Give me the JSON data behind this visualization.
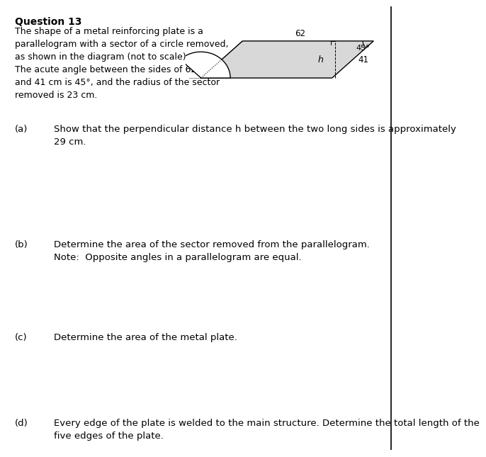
{
  "title": "Question 13",
  "intro_text": "The shape of a metal reinforcing plate is a\nparallelogram with a sector of a circle removed,\nas shown in the diagram (not to scale).\nThe acute angle between the sides of 62 cm\nand 41 cm is 45°, and the radius of the sector\nremoved is 23 cm.",
  "parts": [
    {
      "label": "(a)",
      "text": "Show that the perpendicular distance h between the two long sides is approximately\n29 cm."
    },
    {
      "label": "(b)",
      "text": "Determine the area of the sector removed from the parallelogram.\nNote:  Opposite angles in a parallelogram are equal."
    },
    {
      "label": "(c)",
      "text": "Determine the area of the metal plate."
    },
    {
      "label": "(d)",
      "text": "Every edge of the plate is welded to the main structure. Determine the total length of the\nfive edges of the plate."
    }
  ],
  "diagram": {
    "label_62": "62",
    "label_41": "41",
    "label_h": "h",
    "label_angle": "45°"
  },
  "bg_color": "#ffffff",
  "text_color": "#000000",
  "diagram_fill": "#d8d8d8",
  "diagram_line_color": "#000000"
}
